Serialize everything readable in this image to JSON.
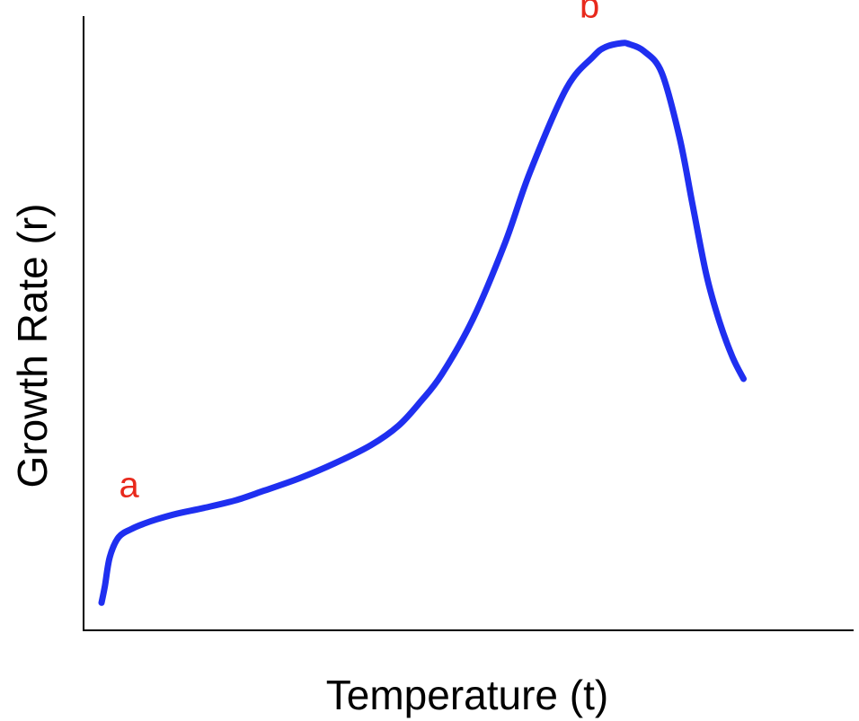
{
  "chart_data": {
    "type": "line",
    "title": "",
    "xlabel": "Temperature (t)",
    "ylabel": "Growth Rate (r)",
    "xlim": [
      0,
      100
    ],
    "ylim": [
      0,
      100
    ],
    "grid": false,
    "legend": "none",
    "series": [
      {
        "color": "#1f2ff0",
        "x": [
          0.0,
          0.5,
          1.2,
          2.5,
          4.5,
          6.3,
          8.0,
          11.0,
          14.9,
          19.4,
          23.6,
          28.8,
          33.9,
          39.2,
          43.2,
          46.4,
          49.5,
          54.0,
          58.7,
          62.3,
          67.6,
          71.5,
          73.3,
          75.7,
          76.8,
          78.9,
          81.5,
          84.1,
          86.0,
          88.0,
          89.9,
          91.8,
          93.4
        ],
        "y": [
          2,
          5,
          10,
          13.5,
          15,
          15.9,
          16.6,
          17.6,
          18.6,
          19.9,
          21.6,
          23.8,
          26.4,
          29.6,
          33.0,
          37.2,
          42.0,
          51.6,
          65.0,
          77.3,
          92.0,
          97.6,
          99.3,
          100.0,
          99.8,
          98.6,
          94.8,
          83.4,
          71.6,
          59.4,
          51.2,
          45.0,
          41.2
        ]
      }
    ],
    "annotations": [
      {
        "text": "a",
        "x": 4.0,
        "y": 20.5,
        "color": "#e8291c"
      },
      {
        "text": "b",
        "x": 71.0,
        "y": 104.5,
        "color": "#e8291c"
      }
    ]
  }
}
